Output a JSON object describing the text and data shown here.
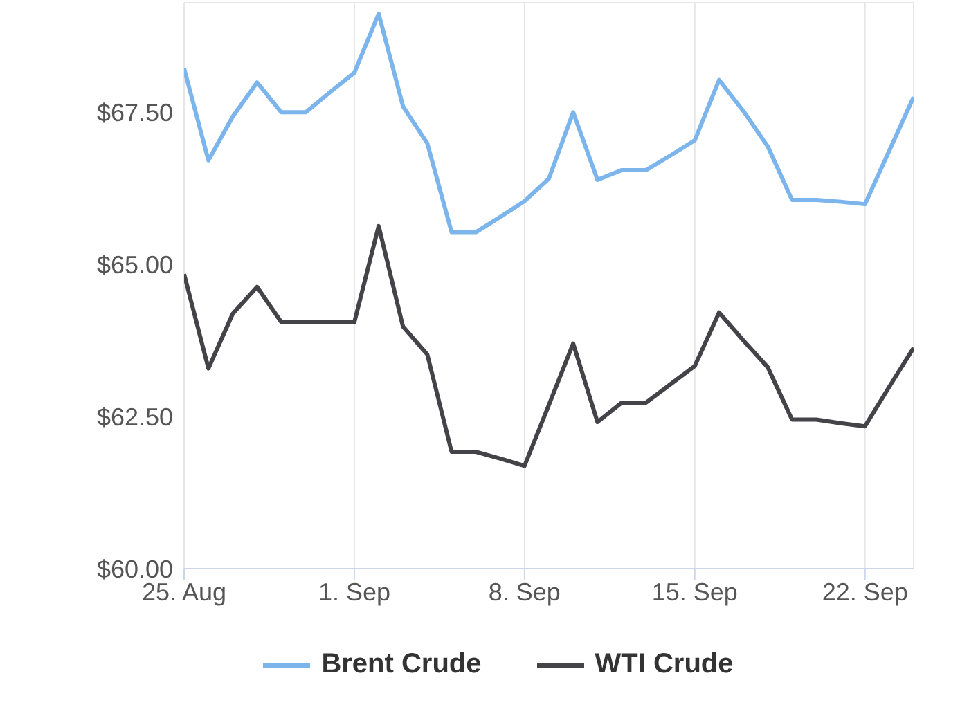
{
  "chart_data": {
    "type": "line",
    "x": [
      "--08-25",
      "--08-26",
      "--08-27",
      "--08-28",
      "--08-29",
      "--08-30",
      "--08-31",
      "--09-01",
      "--09-02",
      "--09-03",
      "--09-04",
      "--09-05",
      "--09-06",
      "--09-07",
      "--09-08",
      "--09-09",
      "--09-10",
      "--09-11",
      "--09-12",
      "--09-13",
      "--09-14",
      "--09-15",
      "--09-16",
      "--09-17",
      "--09-18",
      "--09-19",
      "--09-20",
      "--09-21",
      "--09-22",
      "--09-23",
      "--09-24"
    ],
    "series": [
      {
        "name": "Brent Crude",
        "color": "#7cb5ec",
        "values": [
          68.22,
          66.71,
          67.43,
          67.99,
          67.5,
          67.5,
          67.83,
          68.15,
          69.12,
          67.6,
          66.99,
          65.53,
          65.53,
          65.78,
          66.04,
          66.41,
          67.5,
          66.39,
          66.55,
          66.55,
          66.79,
          67.04,
          68.03,
          67.52,
          66.94,
          66.06,
          66.06,
          66.03,
          65.99,
          66.87,
          67.75
        ]
      },
      {
        "name": "WTI Crude",
        "color": "#434348",
        "values": [
          64.84,
          63.29,
          64.19,
          64.63,
          64.05,
          64.05,
          64.05,
          64.05,
          65.63,
          63.98,
          63.52,
          61.92,
          61.92,
          61.81,
          61.69,
          62.69,
          63.7,
          62.41,
          62.73,
          62.73,
          63.03,
          63.33,
          64.21,
          63.75,
          63.31,
          62.45,
          62.45,
          62.39,
          62.34,
          62.99,
          63.63
        ]
      }
    ],
    "xlim": [
      "--08-25",
      "--09-24"
    ],
    "xticks": [
      {
        "value": "--08-25",
        "label": "25. Aug"
      },
      {
        "value": "--09-01",
        "label": "1. Sep"
      },
      {
        "value": "--09-08",
        "label": "8. Sep"
      },
      {
        "value": "--09-15",
        "label": "15. Sep"
      },
      {
        "value": "--09-22",
        "label": "22. Sep"
      }
    ],
    "ylim": [
      60,
      69.3
    ],
    "yticks": [
      {
        "value": 60,
        "label": "$60.00"
      },
      {
        "value": 62.5,
        "label": "$62.50"
      },
      {
        "value": 65,
        "label": "$65.00"
      },
      {
        "value": 67.5,
        "label": "$67.50"
      }
    ],
    "grid": true,
    "legend": "bottom",
    "marker": "none",
    "line_style": "solid"
  }
}
